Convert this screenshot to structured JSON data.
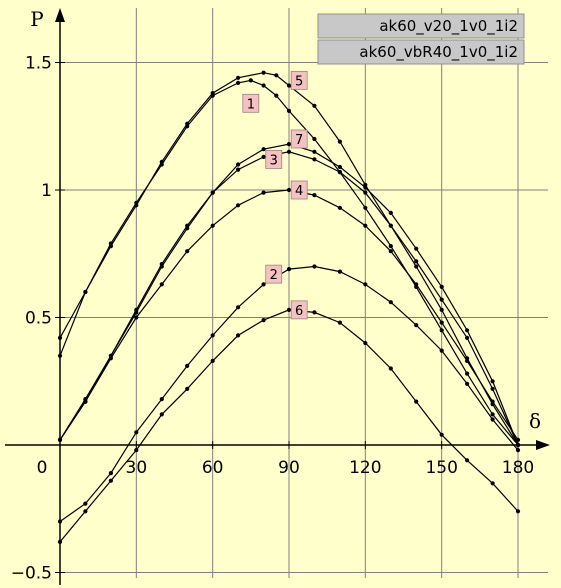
{
  "colors": {
    "background": "#FFFFCC",
    "grid": "#808080",
    "curve": "#000000",
    "legend_box": "#C8C8C8",
    "curve_label_box": "#F4C2C2"
  },
  "legend": [
    "ak60_v20_1v0_1i2",
    "ak60_vbR40_1v0_1i2"
  ],
  "chart_data": {
    "type": "line",
    "title": "",
    "xlabel": "δ",
    "ylabel": "P",
    "xlim": [
      0,
      180
    ],
    "ylim": [
      -0.5,
      1.5
    ],
    "x_tick_labels": [
      "0",
      "30",
      "60",
      "90",
      "120",
      "150",
      "180"
    ],
    "y_tick_labels": [
      "−0.5",
      "0.5",
      "1",
      "1.5"
    ],
    "grid": true,
    "legend_position": "top-right",
    "series": [
      {
        "name": "1",
        "x": [
          0,
          10,
          20,
          30,
          40,
          50,
          60,
          70,
          75,
          80,
          85,
          90,
          100,
          110,
          120,
          130,
          140,
          150,
          160,
          170,
          180
        ],
        "y": [
          0.35,
          0.6,
          0.79,
          0.95,
          1.1,
          1.25,
          1.37,
          1.42,
          1.43,
          1.41,
          1.37,
          1.31,
          1.2,
          1.07,
          0.93,
          0.78,
          0.62,
          0.45,
          0.28,
          0.12,
          0.0
        ]
      },
      {
        "name": "2",
        "x": [
          0,
          10,
          20,
          30,
          40,
          50,
          60,
          70,
          80,
          90,
          100,
          110,
          120,
          130,
          140,
          150,
          160,
          170,
          180
        ],
        "y": [
          -0.3,
          -0.23,
          -0.11,
          0.05,
          0.18,
          0.31,
          0.43,
          0.54,
          0.63,
          0.69,
          0.7,
          0.68,
          0.63,
          0.56,
          0.47,
          0.37,
          0.24,
          0.1,
          -0.02
        ]
      },
      {
        "name": "3",
        "x": [
          0,
          10,
          20,
          30,
          40,
          50,
          60,
          70,
          80,
          90,
          100,
          110,
          120,
          130,
          140,
          150,
          160,
          170,
          180
        ],
        "y": [
          0.02,
          0.17,
          0.35,
          0.52,
          0.7,
          0.85,
          0.99,
          1.08,
          1.13,
          1.15,
          1.12,
          1.07,
          0.99,
          0.86,
          0.7,
          0.53,
          0.34,
          0.16,
          0.0
        ]
      },
      {
        "name": "4",
        "x": [
          0,
          10,
          20,
          30,
          40,
          50,
          60,
          70,
          80,
          90,
          100,
          110,
          120,
          130,
          140,
          150,
          160,
          170,
          180
        ],
        "y": [
          0.02,
          0.17,
          0.34,
          0.5,
          0.63,
          0.76,
          0.86,
          0.94,
          0.99,
          1.0,
          0.98,
          0.93,
          0.86,
          0.76,
          0.63,
          0.48,
          0.33,
          0.17,
          0.02
        ]
      },
      {
        "name": "5",
        "x": [
          0,
          10,
          20,
          30,
          40,
          50,
          60,
          70,
          80,
          85,
          90,
          100,
          110,
          120,
          130,
          140,
          150,
          160,
          170,
          180
        ],
        "y": [
          0.42,
          0.6,
          0.78,
          0.94,
          1.11,
          1.26,
          1.38,
          1.44,
          1.46,
          1.45,
          1.41,
          1.33,
          1.19,
          1.02,
          0.86,
          0.72,
          0.57,
          0.42,
          0.22,
          0.0
        ]
      },
      {
        "name": "6",
        "x": [
          0,
          10,
          20,
          30,
          40,
          50,
          60,
          70,
          80,
          90,
          100,
          110,
          120,
          130,
          140,
          150,
          160,
          170,
          180
        ],
        "y": [
          -0.38,
          -0.26,
          -0.14,
          -0.02,
          0.12,
          0.22,
          0.33,
          0.43,
          0.49,
          0.53,
          0.52,
          0.48,
          0.4,
          0.3,
          0.17,
          0.04,
          -0.06,
          -0.15,
          -0.26
        ]
      },
      {
        "name": "7",
        "x": [
          0,
          10,
          20,
          30,
          40,
          50,
          60,
          70,
          80,
          90,
          100,
          110,
          120,
          130,
          140,
          150,
          160,
          170,
          180
        ],
        "y": [
          0.02,
          0.18,
          0.35,
          0.53,
          0.71,
          0.86,
          0.99,
          1.1,
          1.16,
          1.18,
          1.15,
          1.09,
          1.01,
          0.91,
          0.77,
          0.62,
          0.45,
          0.25,
          0.0
        ]
      }
    ],
    "curve_labels": [
      {
        "text": "1",
        "x": 75,
        "y": 1.34
      },
      {
        "text": "2",
        "x": 84,
        "y": 0.67
      },
      {
        "text": "3",
        "x": 84,
        "y": 1.12
      },
      {
        "text": "4",
        "x": 94,
        "y": 1.0
      },
      {
        "text": "5",
        "x": 94,
        "y": 1.43
      },
      {
        "text": "6",
        "x": 94,
        "y": 0.53
      },
      {
        "text": "7",
        "x": 94,
        "y": 1.2
      }
    ]
  }
}
